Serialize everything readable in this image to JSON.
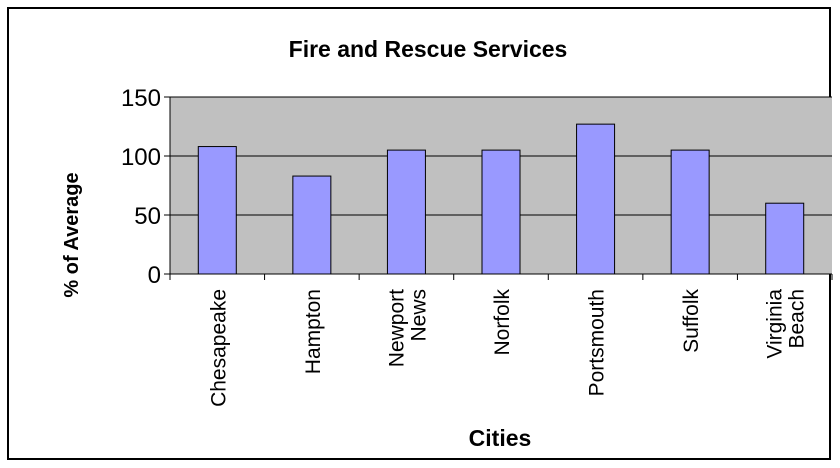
{
  "chart_data": {
    "type": "bar",
    "title": "Fire and Rescue Services",
    "xlabel": "Cities",
    "ylabel": "% of Average",
    "ylim": [
      0,
      150
    ],
    "yticks": [
      0,
      50,
      100,
      150
    ],
    "grid": true,
    "categories": [
      [
        "Chesapeake"
      ],
      [
        "Hampton"
      ],
      [
        "Newport",
        "News"
      ],
      [
        "Norfolk"
      ],
      [
        "Portsmouth"
      ],
      [
        "Suffolk"
      ],
      [
        "Virginia",
        "Beach"
      ]
    ],
    "values": [
      108,
      83,
      105,
      105,
      127,
      105,
      60
    ],
    "colors": {
      "bar_fill": "#9999ff",
      "plot_background": "#c0c0c0",
      "gridline": "#000000"
    }
  }
}
